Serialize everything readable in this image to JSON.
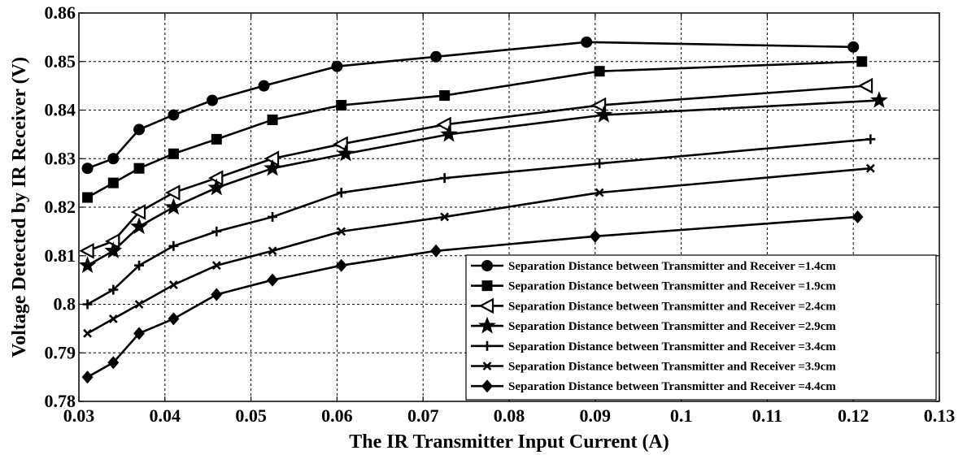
{
  "chart_data": {
    "type": "line",
    "title": "",
    "xlabel": "The IR Transmitter Input Current (A)",
    "ylabel": "Voltage Detected by IR Receiver (V)",
    "xlim": [
      0.03,
      0.13
    ],
    "ylim": [
      0.78,
      0.86
    ],
    "xticks": [
      "0.03",
      "0.04",
      "0.05",
      "0.06",
      "0.07",
      "0.08",
      "0.09",
      "0.1",
      "0.11",
      "0.12",
      "0.13"
    ],
    "yticks": [
      "0.78",
      "0.79",
      "0.8",
      "0.81",
      "0.82",
      "0.83",
      "0.84",
      "0.85",
      "0.86"
    ],
    "grid": true,
    "legend_position": "bottom-right",
    "series": [
      {
        "name": "Separation Distance between Transmitter and Receiver =1.4cm",
        "marker": "circle",
        "x": [
          0.031,
          0.034,
          0.037,
          0.041,
          0.0455,
          0.0515,
          0.06,
          0.0715,
          0.089,
          0.12
        ],
        "y": [
          0.828,
          0.83,
          0.836,
          0.839,
          0.842,
          0.845,
          0.849,
          0.851,
          0.854,
          0.853
        ]
      },
      {
        "name": "Separation Distance between Transmitter and Receiver =1.9cm",
        "marker": "square",
        "x": [
          0.031,
          0.034,
          0.037,
          0.041,
          0.046,
          0.0525,
          0.0605,
          0.0725,
          0.0905,
          0.121
        ],
        "y": [
          0.822,
          0.825,
          0.828,
          0.831,
          0.834,
          0.838,
          0.841,
          0.843,
          0.848,
          0.85
        ]
      },
      {
        "name": "Separation Distance between Transmitter and Receiver =2.4cm",
        "marker": "triangle-left",
        "x": [
          0.031,
          0.034,
          0.037,
          0.041,
          0.046,
          0.0525,
          0.0605,
          0.0725,
          0.0905,
          0.1215
        ],
        "y": [
          0.811,
          0.813,
          0.819,
          0.823,
          0.826,
          0.83,
          0.833,
          0.837,
          0.841,
          0.845
        ]
      },
      {
        "name": "Separation Distance between Transmitter and Receiver =2.9cm",
        "marker": "star",
        "x": [
          0.031,
          0.034,
          0.037,
          0.041,
          0.046,
          0.0525,
          0.061,
          0.073,
          0.091,
          0.123
        ],
        "y": [
          0.808,
          0.811,
          0.816,
          0.82,
          0.824,
          0.828,
          0.831,
          0.835,
          0.839,
          0.842
        ]
      },
      {
        "name": "Separation Distance between Transmitter and Receiver =3.4cm",
        "marker": "plus",
        "x": [
          0.031,
          0.034,
          0.037,
          0.041,
          0.046,
          0.0525,
          0.0605,
          0.0725,
          0.0905,
          0.122
        ],
        "y": [
          0.8,
          0.803,
          0.808,
          0.812,
          0.815,
          0.818,
          0.823,
          0.826,
          0.829,
          0.834
        ]
      },
      {
        "name": "Separation Distance between Transmitter and Receiver =3.9cm",
        "marker": "x",
        "x": [
          0.031,
          0.034,
          0.037,
          0.041,
          0.046,
          0.0525,
          0.0605,
          0.0725,
          0.0905,
          0.122
        ],
        "y": [
          0.794,
          0.797,
          0.8,
          0.804,
          0.808,
          0.811,
          0.815,
          0.818,
          0.823,
          0.828
        ]
      },
      {
        "name": "Separation Distance between Transmitter and Receiver =4.4cm",
        "marker": "diamond",
        "x": [
          0.031,
          0.034,
          0.037,
          0.041,
          0.046,
          0.0525,
          0.0605,
          0.0715,
          0.09,
          0.1205
        ],
        "y": [
          0.785,
          0.788,
          0.794,
          0.797,
          0.802,
          0.805,
          0.808,
          0.811,
          0.814,
          0.818
        ]
      }
    ]
  }
}
